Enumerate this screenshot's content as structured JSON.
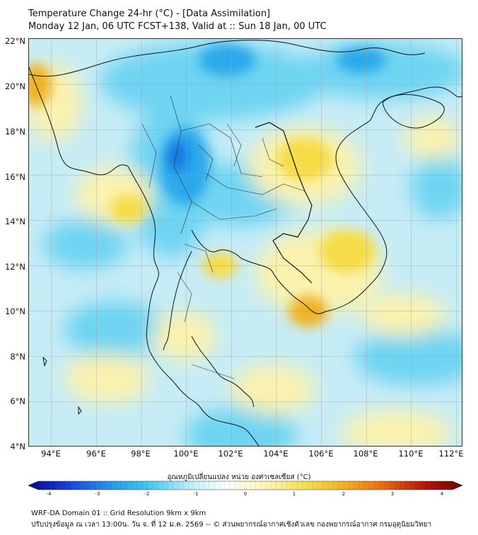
{
  "header": {
    "line1": "Temperature Change 24-hr (°C) - [Data Assimilation]",
    "line2": "Monday 12 Jan, 06 UTC FCST+138, Valid at :: Sun 18 Jan, 00 UTC"
  },
  "map": {
    "lat_labels": [
      "22°N",
      "20°N",
      "18°N",
      "16°N",
      "14°N",
      "12°N",
      "10°N",
      "8°N",
      "6°N",
      "4°N"
    ],
    "lon_labels": [
      "94°E",
      "96°E",
      "98°E",
      "100°E",
      "102°E",
      "104°E",
      "106°E",
      "108°E",
      "110°E",
      "112°E"
    ],
    "lat_range": [
      4,
      22
    ],
    "lon_range": [
      93,
      112.3
    ]
  },
  "colorbar": {
    "title": "อุณหภูมิเปลี่ยนแปลง หน่วย องศาเซลเซียส (°C)",
    "ticks": [
      "-4",
      "-3",
      "-2",
      "-1",
      "0",
      "1",
      "2",
      "3",
      "4"
    ],
    "range": [
      -4,
      4
    ],
    "colors": [
      "#08088a",
      "#1a40d8",
      "#2a90ea",
      "#3cc8f0",
      "#b6ecf8",
      "#ffffff",
      "#fdf6b8",
      "#f6e052",
      "#f2b422",
      "#e86a14",
      "#b81808",
      "#6e0202"
    ]
  },
  "footer": {
    "line1": "WRF-DA Domain 01 :: Grid Resolution 9km x 9km",
    "line2": "ปรับปรุงข้อมูล ณ เวลา 13:00น. วัน จ. ที่ 12 ม.ค. 2569 -- © ส่วนพยากรณ์อากาศเชิงตัวเลข กองพยากรณ์อากาศ กรมอุตุนิยมวิทยา"
  },
  "palette": {
    "ocean_base": "#c6ecf6",
    "cool": "#6ed4f2",
    "cooler": "#2aa8ea",
    "coldest": "#1478e0",
    "warm": "#fbf2ae",
    "warmer": "#f6dc46",
    "hot": "#f0b226",
    "coast": "#111111",
    "border": "#333333",
    "grid": "#a0a0a0"
  }
}
